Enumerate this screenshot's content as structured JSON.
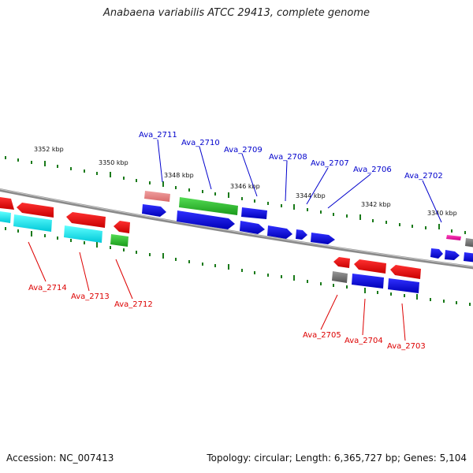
{
  "title": "Anabaena variabilis ATCC 29413, complete genome",
  "footer": {
    "accession": "Accession: NC_007413",
    "summary": "Topology: circular; Length: 6,365,727 bp; Genes: 5,104"
  },
  "scale_labels": [
    "3352 kbp",
    "3350 kbp",
    "3348 kbp",
    "3346 kbp",
    "3344 kbp",
    "3342 kbp",
    "3340 kbp"
  ],
  "gene_labels": {
    "Ava_2711": "Ava_2711",
    "Ava_2710": "Ava_2710",
    "Ava_2709": "Ava_2709",
    "Ava_2708": "Ava_2708",
    "Ava_2707": "Ava_2707",
    "Ava_2706": "Ava_2706",
    "Ava_2702": "Ava_2702",
    "Ava_2714": "Ava_2714",
    "Ava_2713": "Ava_2713",
    "Ava_2712": "Ava_2712",
    "Ava_2705": "Ava_2705",
    "Ava_2704": "Ava_2704",
    "Ava_2703": "Ava_2703"
  },
  "colors": {
    "label_top": "#0000cc",
    "label_bottom": "#dd0000",
    "tick": "#1a7a1a",
    "backbone": "#8a8a8a",
    "blue": "#0000e0",
    "red": "#ee0000",
    "cyan": "#00e8f0",
    "green": "#22bb22",
    "pink": "#ee2299",
    "gray": "#777777"
  }
}
